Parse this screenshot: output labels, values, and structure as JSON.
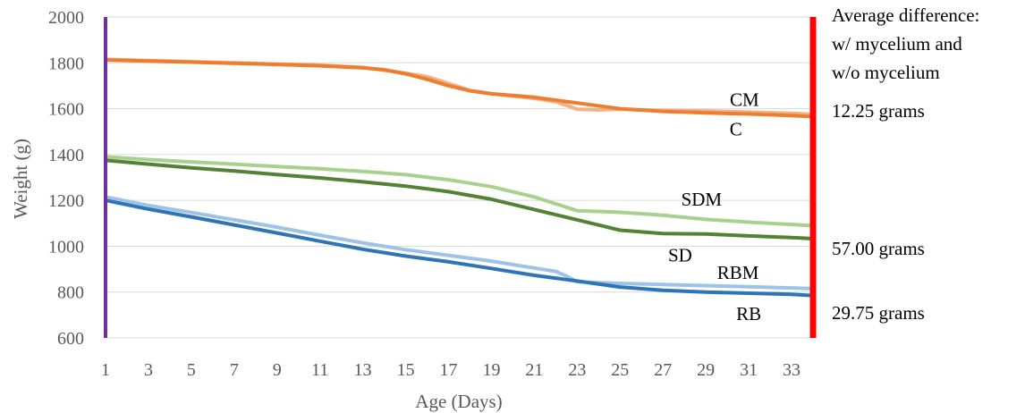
{
  "chart_data": {
    "type": "line",
    "xlabel": "Age (Days)",
    "ylabel": "Weight (g)",
    "xlim": [
      1,
      34
    ],
    "ylim": [
      600,
      2000
    ],
    "x_ticks": [
      1,
      3,
      5,
      7,
      9,
      11,
      13,
      15,
      17,
      19,
      21,
      23,
      25,
      27,
      29,
      31,
      33
    ],
    "y_ticks": [
      600,
      800,
      1000,
      1200,
      1400,
      1600,
      1800,
      2000
    ],
    "grid": "horizontal",
    "series": [
      {
        "name": "CM",
        "color": "#f4b183",
        "points": [
          [
            1,
            1815
          ],
          [
            3,
            1810
          ],
          [
            5,
            1805
          ],
          [
            7,
            1800
          ],
          [
            9,
            1795
          ],
          [
            11,
            1790
          ],
          [
            13,
            1780
          ],
          [
            15,
            1755
          ],
          [
            16,
            1740
          ],
          [
            17,
            1710
          ],
          [
            18,
            1680
          ],
          [
            19,
            1665
          ],
          [
            20,
            1655
          ],
          [
            21,
            1645
          ],
          [
            22,
            1630
          ],
          [
            22.5,
            1615
          ],
          [
            23,
            1597
          ],
          [
            24,
            1595
          ],
          [
            25,
            1597
          ],
          [
            27,
            1592
          ],
          [
            29,
            1590
          ],
          [
            31,
            1585
          ],
          [
            33,
            1580
          ],
          [
            34,
            1575
          ]
        ]
      },
      {
        "name": "C",
        "color": "#ed7d31",
        "points": [
          [
            1,
            1813
          ],
          [
            3,
            1808
          ],
          [
            5,
            1803
          ],
          [
            7,
            1798
          ],
          [
            9,
            1793
          ],
          [
            11,
            1787
          ],
          [
            13,
            1778
          ],
          [
            14,
            1770
          ],
          [
            15,
            1752
          ],
          [
            16,
            1728
          ],
          [
            17,
            1700
          ],
          [
            18,
            1678
          ],
          [
            19,
            1665
          ],
          [
            21,
            1650
          ],
          [
            23,
            1625
          ],
          [
            25,
            1600
          ],
          [
            27,
            1588
          ],
          [
            29,
            1582
          ],
          [
            31,
            1577
          ],
          [
            33,
            1570
          ],
          [
            34,
            1565
          ]
        ]
      },
      {
        "name": "SDM",
        "color": "#a9d18e",
        "points": [
          [
            1,
            1390
          ],
          [
            3,
            1378
          ],
          [
            5,
            1368
          ],
          [
            7,
            1358
          ],
          [
            9,
            1348
          ],
          [
            11,
            1338
          ],
          [
            13,
            1326
          ],
          [
            15,
            1312
          ],
          [
            17,
            1290
          ],
          [
            19,
            1260
          ],
          [
            21,
            1215
          ],
          [
            22,
            1185
          ],
          [
            23,
            1155
          ],
          [
            24,
            1152
          ],
          [
            25,
            1148
          ],
          [
            27,
            1135
          ],
          [
            29,
            1117
          ],
          [
            31,
            1105
          ],
          [
            33,
            1095
          ],
          [
            34,
            1090
          ]
        ]
      },
      {
        "name": "SD",
        "color": "#548235",
        "points": [
          [
            1,
            1375
          ],
          [
            3,
            1358
          ],
          [
            5,
            1342
          ],
          [
            7,
            1328
          ],
          [
            9,
            1313
          ],
          [
            11,
            1298
          ],
          [
            13,
            1281
          ],
          [
            15,
            1262
          ],
          [
            17,
            1238
          ],
          [
            19,
            1205
          ],
          [
            21,
            1160
          ],
          [
            23,
            1115
          ],
          [
            25,
            1070
          ],
          [
            27,
            1055
          ],
          [
            29,
            1053
          ],
          [
            31,
            1045
          ],
          [
            33,
            1038
          ],
          [
            34,
            1033
          ]
        ]
      },
      {
        "name": "RBM",
        "color": "#9dc3e6",
        "points": [
          [
            1,
            1215
          ],
          [
            3,
            1178
          ],
          [
            5,
            1147
          ],
          [
            7,
            1115
          ],
          [
            9,
            1083
          ],
          [
            11,
            1048
          ],
          [
            13,
            1015
          ],
          [
            15,
            985
          ],
          [
            17,
            960
          ],
          [
            19,
            935
          ],
          [
            21,
            905
          ],
          [
            22,
            890
          ],
          [
            22.5,
            870
          ],
          [
            23,
            845
          ],
          [
            25,
            838
          ],
          [
            27,
            833
          ],
          [
            29,
            828
          ],
          [
            31,
            823
          ],
          [
            33,
            818
          ],
          [
            34,
            815
          ]
        ]
      },
      {
        "name": "RB",
        "color": "#2e75b6",
        "points": [
          [
            1,
            1200
          ],
          [
            3,
            1162
          ],
          [
            5,
            1128
          ],
          [
            7,
            1093
          ],
          [
            9,
            1058
          ],
          [
            11,
            1022
          ],
          [
            13,
            987
          ],
          [
            15,
            957
          ],
          [
            17,
            932
          ],
          [
            19,
            903
          ],
          [
            21,
            873
          ],
          [
            23,
            848
          ],
          [
            25,
            822
          ],
          [
            27,
            808
          ],
          [
            29,
            800
          ],
          [
            31,
            795
          ],
          [
            33,
            790
          ],
          [
            34,
            785
          ]
        ]
      }
    ],
    "annotations": {
      "header_lines": [
        "Average difference:",
        "w/ mycelium and",
        "w/o mycelium"
      ],
      "differences": [
        {
          "text": "12.25 grams",
          "y": 1590
        },
        {
          "text": "57.00 grams",
          "y": 990
        },
        {
          "text": "29.75 grams",
          "y": 710
        }
      ]
    },
    "label_positions": [
      {
        "name": "CM",
        "x": 30.8,
        "y": 1640
      },
      {
        "name": "C",
        "x": 30.4,
        "y": 1510
      },
      {
        "name": "SDM",
        "x": 28.8,
        "y": 1205
      },
      {
        "name": "SD",
        "x": 27.8,
        "y": 960
      },
      {
        "name": "RBM",
        "x": 30.5,
        "y": 885
      },
      {
        "name": "RB",
        "x": 31.0,
        "y": 705
      }
    ],
    "left_bar_color": "#7030a0",
    "right_bar_color": "#ff0000"
  }
}
